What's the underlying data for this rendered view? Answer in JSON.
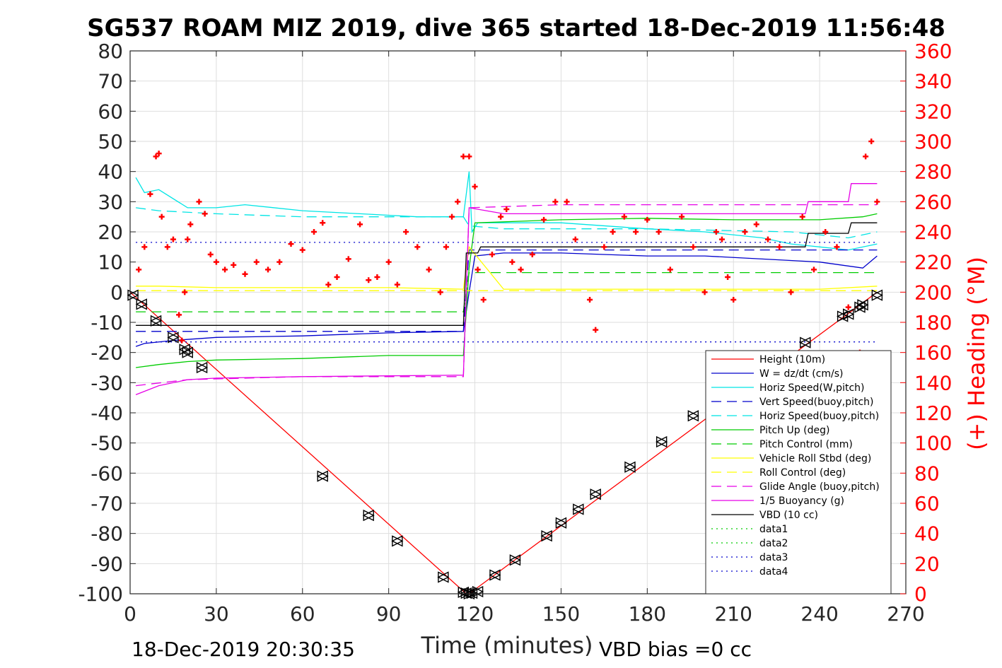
{
  "chart_data": {
    "type": "line",
    "title": "SG537 ROAM MIZ 2019, dive 365 started 18-Dec-2019 11:56:48",
    "xlabel": "Time (minutes)",
    "ylabel": "",
    "ylabel_right": "(+) Heading (°M)",
    "xlim": [
      0,
      270
    ],
    "ylim": [
      -100,
      80
    ],
    "ylim_right": [
      0,
      360
    ],
    "x_ticks": [
      "0",
      "30",
      "60",
      "90",
      "120",
      "150",
      "180",
      "210",
      "240",
      "270"
    ],
    "y_ticks": [
      "80",
      "70",
      "60",
      "50",
      "40",
      "30",
      "20",
      "10",
      "0",
      "-10",
      "-20",
      "-30",
      "-40",
      "-50",
      "-60",
      "-70",
      "-80",
      "-90",
      "-100"
    ],
    "y_ticks_right": [
      "360",
      "340",
      "320",
      "300",
      "280",
      "260",
      "240",
      "220",
      "200",
      "180",
      "160",
      "140",
      "120",
      "100",
      "80",
      "60",
      "40",
      "20",
      "0"
    ],
    "grid": true,
    "legend_position": "bottom-right",
    "footer_left": "18-Dec-2019 20:30:35",
    "footer_right": "VBD bias =0 cc",
    "colors": {
      "red": "#ff0000",
      "blue": "#0000cc",
      "cyan": "#00e5e5",
      "green": "#00cc00",
      "yellow": "#ffff00",
      "magenta": "#e600e6",
      "black": "#000000"
    },
    "series": [
      {
        "name": "Height (10m)",
        "color": "#ff0000",
        "style": "solid",
        "x": [
          0,
          117,
          118,
          260
        ],
        "y": [
          0,
          -100,
          -100,
          0
        ]
      },
      {
        "name": "W = dz/dt (cm/s)",
        "color": "#0000cc",
        "style": "solid",
        "x": [
          2,
          5,
          15,
          30,
          60,
          90,
          116,
          118,
          120,
          130,
          150,
          180,
          200,
          220,
          240,
          255,
          260
        ],
        "y": [
          -18,
          -17,
          -16,
          -15,
          -14.5,
          -13.5,
          -13,
          0,
          12,
          13,
          13,
          12,
          12,
          11,
          10,
          8,
          12
        ]
      },
      {
        "name": "Horiz Speed(W,pitch)",
        "color": "#00e5e5",
        "style": "solid",
        "x": [
          2,
          5,
          10,
          20,
          30,
          40,
          60,
          80,
          100,
          116,
          118,
          119,
          121,
          130,
          150,
          180,
          200,
          220,
          230,
          240,
          250,
          260
        ],
        "y": [
          38,
          33,
          34,
          28,
          28,
          29,
          27,
          26,
          25,
          25,
          40,
          20,
          23,
          23,
          23,
          21,
          20,
          18,
          16,
          15,
          14,
          16
        ]
      },
      {
        "name": "Vert Speed(buoy,pitch)",
        "color": "#0000cc",
        "style": "dash",
        "x": [
          2,
          116,
          118,
          260
        ],
        "y": [
          -13,
          -13,
          14,
          14
        ]
      },
      {
        "name": "Horiz Speed(buoy,pitch)",
        "color": "#00e5e5",
        "style": "dash",
        "x": [
          2,
          10,
          30,
          60,
          116,
          118,
          130,
          180,
          230,
          250,
          260
        ],
        "y": [
          28,
          27,
          26,
          25,
          25,
          22,
          21,
          21,
          20,
          18,
          20
        ]
      },
      {
        "name": "Pitch Up (deg)",
        "color": "#00cc00",
        "style": "solid",
        "x": [
          2,
          10,
          20,
          30,
          60,
          90,
          116,
          118,
          120,
          150,
          180,
          210,
          240,
          255,
          260
        ],
        "y": [
          -25,
          -24,
          -23,
          -22.5,
          -22,
          -21,
          -21,
          8,
          23,
          24,
          24.5,
          24,
          24,
          25,
          26
        ]
      },
      {
        "name": "Pitch Control (mm)",
        "color": "#00cc00",
        "style": "dash",
        "x": [
          2,
          116,
          118,
          260
        ],
        "y": [
          -6.5,
          -6.5,
          6.5,
          6.5
        ]
      },
      {
        "name": "Vehicle Roll Stbd (deg)",
        "color": "#ffff00",
        "style": "solid",
        "x": [
          2,
          10,
          30,
          60,
          90,
          116,
          118,
          130,
          150,
          180,
          210,
          240,
          260
        ],
        "y": [
          2,
          2,
          1.5,
          1.5,
          1.5,
          1,
          15,
          1,
          1,
          1,
          1,
          1,
          2
        ]
      },
      {
        "name": "Roll Control (deg)",
        "color": "#ffff00",
        "style": "dash",
        "x": [
          2,
          260
        ],
        "y": [
          0.5,
          0.5
        ]
      },
      {
        "name": "Glide Angle (buoy,pitch)",
        "color": "#e600e6",
        "style": "dash",
        "x": [
          2,
          20,
          60,
          116,
          118,
          150,
          200,
          260
        ],
        "y": [
          -31,
          -29,
          -28,
          -28,
          28,
          29,
          29,
          29
        ]
      },
      {
        "name": "1/5 Buoyancy (g)",
        "color": "#e600e6",
        "style": "solid",
        "x": [
          2,
          10,
          20,
          30,
          60,
          116,
          118,
          130,
          200,
          235,
          236,
          250,
          251,
          260
        ],
        "y": [
          -34,
          -31,
          -29,
          -28.5,
          -28,
          -27.5,
          28,
          26,
          26,
          26,
          30,
          30,
          36,
          36
        ]
      },
      {
        "name": "VBD (10 cc)",
        "color": "#000000",
        "style": "solid",
        "x": [
          2,
          3,
          116,
          117,
          121,
          122,
          235,
          236,
          250,
          251,
          260
        ],
        "y": [
          -11,
          -11,
          -11,
          13,
          13,
          15,
          15,
          19.5,
          19.5,
          23,
          23
        ]
      },
      {
        "name": "data1",
        "color": "#00cc00",
        "style": "dot",
        "x": [],
        "y": []
      },
      {
        "name": "data2",
        "color": "#00cc00",
        "style": "dot",
        "x": [],
        "y": []
      },
      {
        "name": "data3",
        "color": "#0000cc",
        "style": "dot",
        "x": [
          2,
          260
        ],
        "y": [
          16.5,
          16.5
        ]
      },
      {
        "name": "data4",
        "color": "#0000cc",
        "style": "dot",
        "x": [
          2,
          260
        ],
        "y": [
          -16.5,
          -16.5
        ]
      }
    ],
    "heading_series": {
      "name": "(+) Heading (°M)",
      "color": "#ff0000",
      "marker": "+",
      "x": [
        3,
        5,
        7,
        9,
        10,
        11,
        13,
        15,
        17,
        18,
        19,
        20,
        21,
        24,
        26,
        28,
        30,
        33,
        36,
        40,
        44,
        48,
        52,
        56,
        60,
        64,
        67,
        69,
        72,
        76,
        80,
        83,
        86,
        90,
        93,
        96,
        100,
        104,
        108,
        110,
        112,
        114,
        116,
        118,
        120,
        121,
        123,
        126,
        129,
        131,
        133,
        136,
        140,
        144,
        148,
        152,
        155,
        160,
        162,
        165,
        168,
        172,
        176,
        180,
        184,
        188,
        192,
        196,
        200,
        204,
        206,
        208,
        210,
        214,
        218,
        222,
        226,
        230,
        234,
        238,
        242,
        246,
        250,
        254,
        256,
        258,
        260
      ],
      "y": [
        215,
        230,
        265,
        290,
        292,
        250,
        230,
        235,
        185,
        168,
        200,
        235,
        245,
        260,
        252,
        225,
        220,
        215,
        218,
        212,
        220,
        215,
        220,
        232,
        228,
        240,
        246,
        205,
        210,
        222,
        245,
        208,
        210,
        220,
        205,
        240,
        230,
        215,
        200,
        230,
        250,
        260,
        290,
        290,
        270,
        215,
        195,
        225,
        250,
        255,
        220,
        215,
        225,
        248,
        260,
        260,
        235,
        195,
        175,
        230,
        240,
        250,
        240,
        248,
        240,
        215,
        250,
        230,
        200,
        240,
        235,
        210,
        195,
        240,
        245,
        235,
        230,
        200,
        250,
        215,
        240,
        230,
        190,
        160,
        290,
        300,
        260
      ]
    },
    "depth_markers": {
      "name": "depth-markers",
      "x": [
        1,
        4,
        9,
        15,
        19,
        20,
        25,
        67,
        83,
        93,
        109,
        116,
        117,
        118,
        119,
        121,
        127,
        134,
        145,
        150,
        156,
        162,
        174,
        185,
        196,
        235,
        248,
        250,
        254,
        255,
        260
      ],
      "y": [
        -1,
        -4,
        -9.5,
        -15,
        -19,
        -20,
        -25,
        -61,
        -74,
        -82.5,
        -94.5,
        -99.5,
        -99.8,
        -100,
        -99.8,
        -99.3,
        -93.8,
        -88.8,
        -80.8,
        -76.5,
        -72,
        -67,
        -58,
        -49.6,
        -41,
        -16.7,
        -8,
        -7.3,
        -5,
        -4.2,
        -1
      ]
    }
  }
}
